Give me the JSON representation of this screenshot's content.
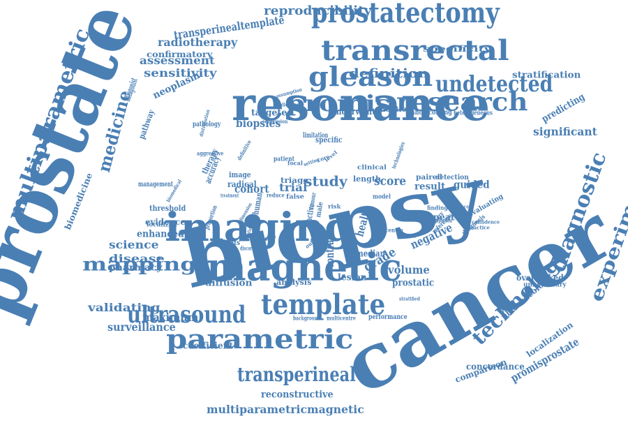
{
  "theme": {
    "word_color": "#4a7fb4",
    "background": "#ffffff"
  },
  "words": [
    "prostate",
    "biopsy",
    "cancer",
    "resonance",
    "imaging",
    "magnetic",
    "prostatectomy",
    "transrectal",
    "gleason",
    "undetected",
    "research",
    "promis",
    "template",
    "parametric",
    "ultrasound",
    "mapping",
    "multiparametric",
    "diagnostic",
    "experimental",
    "technology",
    "medicine",
    "transperineal",
    "definition",
    "reproducibility",
    "transperinealtemplate",
    "radiotherapy",
    "confirmatory",
    "assessment",
    "sensitivity",
    "specificity",
    "stratification",
    "significant",
    "predicting",
    "biopsies",
    "neoplasm",
    "antagonist",
    "pathway",
    "targeted",
    "underwent",
    "adoption",
    "shortcoming",
    "heterogeneous",
    "study",
    "score",
    "trial",
    "result",
    "guided",
    "cohort",
    "triage",
    "length",
    "paired",
    "detection",
    "clinical",
    "human",
    "contrast",
    "health",
    "repeat",
    "evaluating",
    "grade",
    "negative",
    "median",
    "volume",
    "prostatic",
    "lesion",
    "analysis",
    "diffusion",
    "disease",
    "pharmacy",
    "science",
    "enhanced",
    "evidence",
    "threshold",
    "localized",
    "validating",
    "maximum",
    "surveillance",
    "coefficient",
    "performance",
    "concordance",
    "comparison",
    "reconstructive",
    "multiparametricmagnetic",
    "pharmacology",
    "localization",
    "promisprostate",
    "overlooked",
    "unnecessary",
    "diagnosis",
    "reference",
    "primary",
    "biomedicine",
    "management",
    "accuracy",
    "therapy",
    "radical",
    "image",
    "specific",
    "limitation",
    "patient",
    "focal",
    "setting",
    "reduce",
    "false",
    "risk",
    "model",
    "technologies",
    "finding",
    "advance",
    "confidence",
    "practice",
    "centre",
    "method",
    "current",
    "output",
    "discordant",
    "radiologist",
    "rationale",
    "hotspots",
    "proportion",
    "stratified",
    "background",
    "multicentre",
    "suspicion",
    "application",
    "assumption",
    "pathology",
    "conclusion",
    "aggressive",
    "definitive",
    "biomedical",
    "treatment",
    "tumour",
    "male",
    "active",
    "dimension",
    "core",
    "level",
    "distribution"
  ]
}
